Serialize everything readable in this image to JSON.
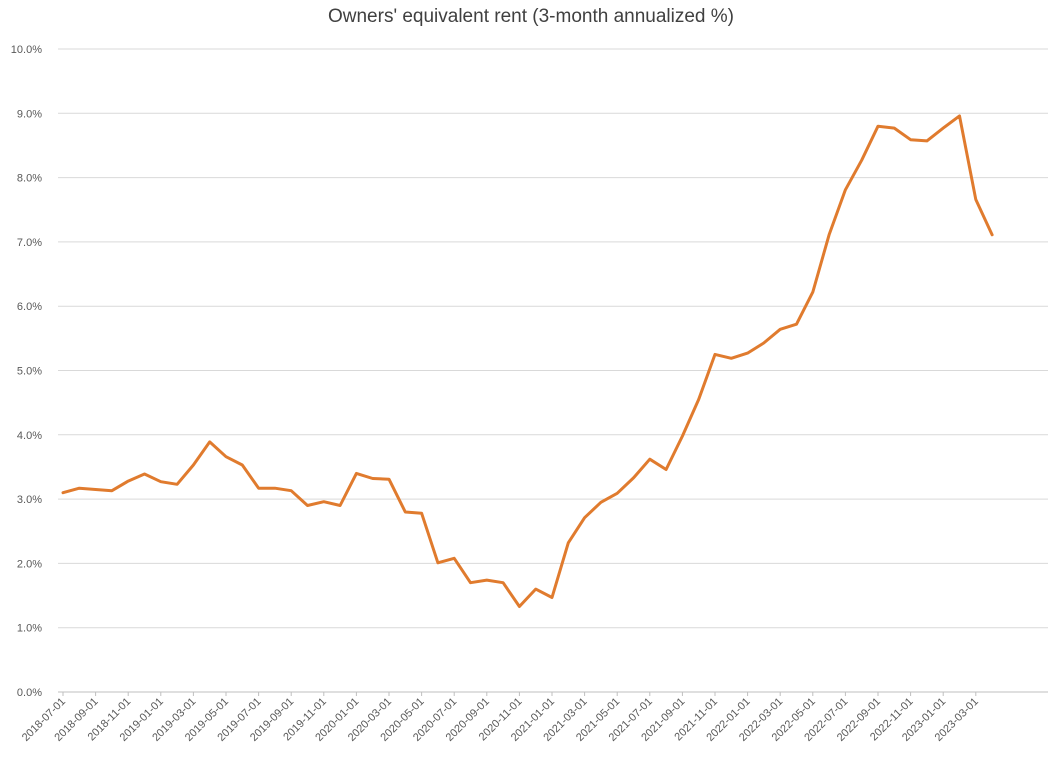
{
  "chart_data": {
    "type": "line",
    "title": "Owners' equivalent rent (3-month annualized %)",
    "xlabel": "",
    "ylabel": "",
    "ylim": [
      0,
      10
    ],
    "y_ticks": [
      "0.0%",
      "1.0%",
      "2.0%",
      "3.0%",
      "4.0%",
      "5.0%",
      "6.0%",
      "7.0%",
      "8.0%",
      "9.0%",
      "10.0%"
    ],
    "x_tick_labels": [
      "2018-07-01",
      "2018-09-01",
      "2018-11-01",
      "2019-01-01",
      "2019-03-01",
      "2019-05-01",
      "2019-07-01",
      "2019-09-01",
      "2019-11-01",
      "2020-01-01",
      "2020-03-01",
      "2020-05-01",
      "2020-07-01",
      "2020-09-01",
      "2020-11-01",
      "2021-01-01",
      "2021-03-01",
      "2021-05-01",
      "2021-07-01",
      "2021-09-01",
      "2021-11-01",
      "2022-01-01",
      "2022-03-01",
      "2022-05-01",
      "2022-07-01",
      "2022-09-01",
      "2022-11-01",
      "2023-01-01",
      "2023-03-01"
    ],
    "grid": true,
    "legend": "none",
    "line_color": "#E07B2E",
    "series": [
      {
        "x": [
          "2018-07-01",
          "2018-08-01",
          "2018-09-01",
          "2018-10-01",
          "2018-11-01",
          "2018-12-01",
          "2019-01-01",
          "2019-02-01",
          "2019-03-01",
          "2019-04-01",
          "2019-05-01",
          "2019-06-01",
          "2019-07-01",
          "2019-08-01",
          "2019-09-01",
          "2019-10-01",
          "2019-11-01",
          "2019-12-01",
          "2020-01-01",
          "2020-02-01",
          "2020-03-01",
          "2020-04-01",
          "2020-05-01",
          "2020-06-01",
          "2020-07-01",
          "2020-08-01",
          "2020-09-01",
          "2020-10-01",
          "2020-11-01",
          "2020-12-01",
          "2021-01-01",
          "2021-02-01",
          "2021-03-01",
          "2021-04-01",
          "2021-05-01",
          "2021-06-01",
          "2021-07-01",
          "2021-08-01",
          "2021-09-01",
          "2021-10-01",
          "2021-11-01",
          "2021-12-01",
          "2022-01-01",
          "2022-02-01",
          "2022-03-01",
          "2022-04-01",
          "2022-05-01",
          "2022-06-01",
          "2022-07-01",
          "2022-08-01",
          "2022-09-01",
          "2022-10-01",
          "2022-11-01",
          "2022-12-01",
          "2023-01-01",
          "2023-02-01",
          "2023-03-01",
          "2023-04-01"
        ],
        "values": [
          3.1,
          3.17,
          3.15,
          3.13,
          3.28,
          3.39,
          3.27,
          3.23,
          3.53,
          3.89,
          3.66,
          3.53,
          3.17,
          3.17,
          3.13,
          2.9,
          2.96,
          2.9,
          3.4,
          3.32,
          3.31,
          2.8,
          2.78,
          2.01,
          2.08,
          1.7,
          1.74,
          1.7,
          1.33,
          1.6,
          1.47,
          2.32,
          2.71,
          2.95,
          3.09,
          3.33,
          3.62,
          3.46,
          3.98,
          4.55,
          5.25,
          5.19,
          5.27,
          5.43,
          5.64,
          5.72,
          6.22,
          7.11,
          7.81,
          8.27,
          8.8,
          8.77,
          8.59,
          8.57,
          8.77,
          8.96,
          7.66,
          7.11
        ]
      }
    ]
  }
}
